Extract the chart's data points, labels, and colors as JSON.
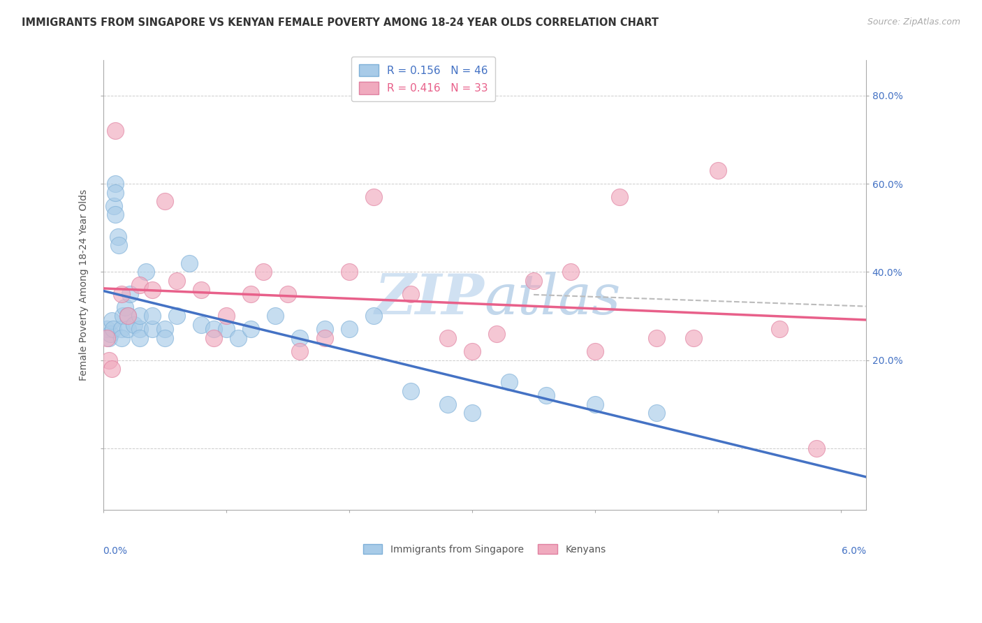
{
  "title": "IMMIGRANTS FROM SINGAPORE VS KENYAN FEMALE POVERTY AMONG 18-24 YEAR OLDS CORRELATION CHART",
  "source": "Source: ZipAtlas.com",
  "ylabel": "Female Poverty Among 18-24 Year Olds",
  "legend_blue_text": "R = 0.156   N = 46",
  "legend_pink_text": "R = 0.416   N = 33",
  "legend_label_blue": "Immigrants from Singapore",
  "legend_label_pink": "Kenyans",
  "blue_fill": "#A8CBE8",
  "pink_fill": "#F0AABE",
  "blue_edge": "#7EB0D8",
  "pink_edge": "#E080A0",
  "blue_line": "#4472C4",
  "pink_line": "#E8608A",
  "dash_line": "#BBBBBB",
  "watermark_color": "#D8E8F4",
  "background": "#FFFFFF",
  "grid_color": "#CCCCCC",
  "spine_color": "#AAAAAA",
  "title_color": "#333333",
  "source_color": "#AAAAAA",
  "ylabel_color": "#555555",
  "tick_color": "#4472C4",
  "xlim": [
    0.0,
    0.062
  ],
  "ylim": [
    -0.14,
    0.88
  ],
  "ytick_vals": [
    0.0,
    0.2,
    0.4,
    0.6,
    0.8
  ],
  "ytick_labels": [
    "",
    "20.0%",
    "40.0%",
    "60.0%",
    "80.0%"
  ],
  "blue_x": [
    0.0003,
    0.0005,
    0.0006,
    0.0007,
    0.0008,
    0.0009,
    0.001,
    0.001,
    0.001,
    0.0012,
    0.0013,
    0.0015,
    0.0015,
    0.0016,
    0.0018,
    0.002,
    0.002,
    0.0022,
    0.0025,
    0.003,
    0.003,
    0.003,
    0.0035,
    0.004,
    0.004,
    0.005,
    0.005,
    0.006,
    0.007,
    0.008,
    0.009,
    0.01,
    0.011,
    0.012,
    0.014,
    0.016,
    0.018,
    0.02,
    0.022,
    0.025,
    0.028,
    0.03,
    0.033,
    0.036,
    0.04,
    0.045
  ],
  "blue_y": [
    0.27,
    0.25,
    0.26,
    0.29,
    0.27,
    0.55,
    0.6,
    0.58,
    0.53,
    0.48,
    0.46,
    0.27,
    0.25,
    0.3,
    0.32,
    0.3,
    0.27,
    0.35,
    0.28,
    0.27,
    0.3,
    0.25,
    0.4,
    0.27,
    0.3,
    0.27,
    0.25,
    0.3,
    0.42,
    0.28,
    0.27,
    0.27,
    0.25,
    0.27,
    0.3,
    0.25,
    0.27,
    0.27,
    0.3,
    0.13,
    0.1,
    0.08,
    0.15,
    0.12,
    0.1,
    0.08
  ],
  "pink_x": [
    0.0003,
    0.0005,
    0.0007,
    0.001,
    0.0015,
    0.002,
    0.003,
    0.004,
    0.005,
    0.006,
    0.008,
    0.009,
    0.01,
    0.012,
    0.013,
    0.015,
    0.016,
    0.018,
    0.02,
    0.022,
    0.025,
    0.028,
    0.03,
    0.032,
    0.035,
    0.038,
    0.04,
    0.042,
    0.045,
    0.048,
    0.05,
    0.055,
    0.058
  ],
  "pink_y": [
    0.25,
    0.2,
    0.18,
    0.72,
    0.35,
    0.3,
    0.37,
    0.36,
    0.56,
    0.38,
    0.36,
    0.25,
    0.3,
    0.35,
    0.4,
    0.35,
    0.22,
    0.25,
    0.4,
    0.57,
    0.35,
    0.25,
    0.22,
    0.26,
    0.38,
    0.4,
    0.22,
    0.57,
    0.25,
    0.25,
    0.63,
    0.27,
    0.0
  ]
}
